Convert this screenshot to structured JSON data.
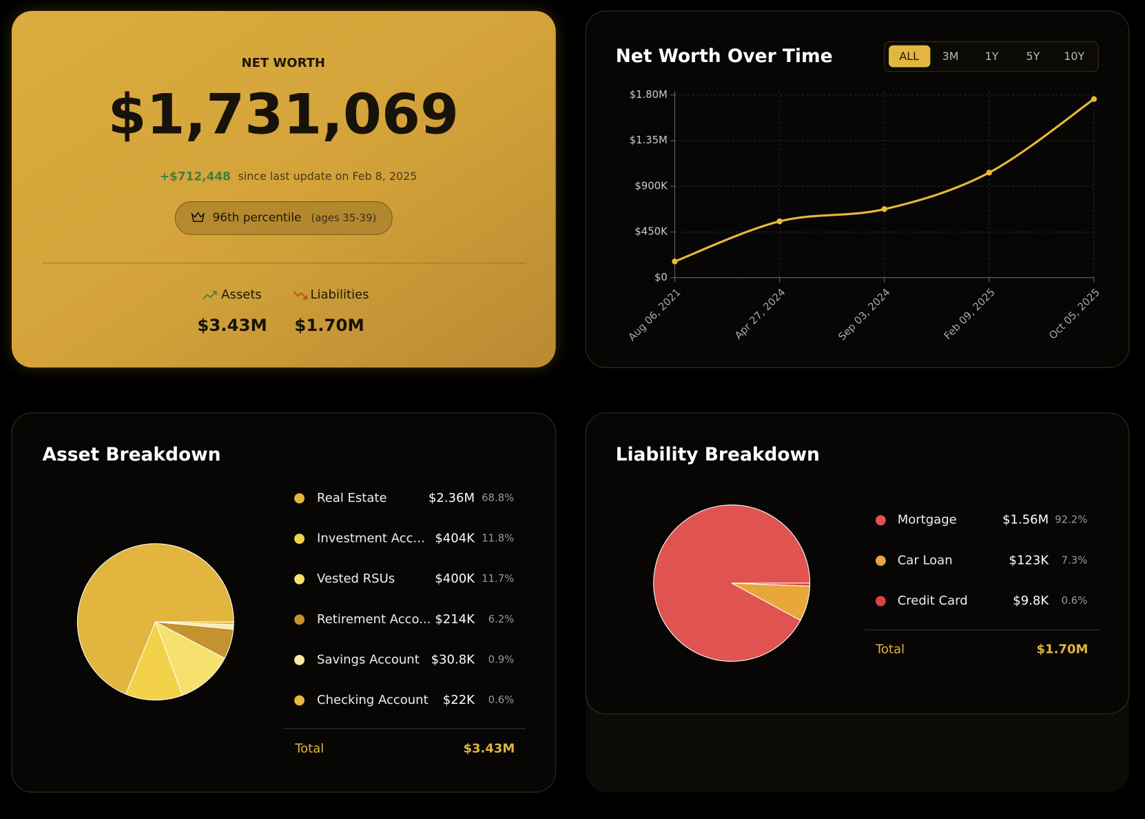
{
  "net_worth": {
    "label": "NET WORTH",
    "value": "$1,731,069",
    "change": "+$712,448",
    "change_note": "since last update on Feb 8, 2025",
    "percentile": "96th percentile",
    "percentile_note": "(ages 35-39)",
    "assets_label": "Assets",
    "assets_value": "$3.43M",
    "liabilities_label": "Liabilities",
    "liabilities_value": "$1.70M"
  },
  "chart_data": [
    {
      "type": "line",
      "title": "Net Worth Over Time",
      "range_options": [
        "ALL",
        "3M",
        "1Y",
        "5Y",
        "10Y"
      ],
      "categories": [
        "Aug 06, 2021",
        "Apr 27, 2024",
        "Sep 03, 2024",
        "Feb 09, 2025",
        "Oct 05, 2025"
      ],
      "series": [
        {
          "name": "Net Worth",
          "color": "#e8b83a",
          "values": [
            160000,
            555000,
            675000,
            1035000,
            1760000
          ]
        }
      ],
      "ylim": [
        0,
        1800000
      ],
      "yticks": [
        {
          "value": 0,
          "label": "$0"
        },
        {
          "value": 450000,
          "label": "$450K"
        },
        {
          "value": 900000,
          "label": "$900K"
        },
        {
          "value": 1350000,
          "label": "$1.35M"
        },
        {
          "value": 1800000,
          "label": "$1.80M"
        }
      ],
      "grid": true
    },
    {
      "type": "pie",
      "title": "Asset Breakdown",
      "categories": [
        "Real Estate",
        "Investment Acc...",
        "Vested RSUs",
        "Retirement Acco...",
        "Savings Account",
        "Checking Account"
      ],
      "values": [
        68.8,
        11.8,
        11.7,
        6.2,
        0.9,
        0.6
      ],
      "value_labels": [
        "68.8%",
        "11.8%",
        "11.7%",
        "6.2%",
        "0.9%",
        "0.6%"
      ],
      "amounts": [
        "$2.36M",
        "$404K",
        "$400K",
        "$214K",
        "$30.8K",
        "$22K"
      ],
      "colors": [
        "#e2b53f",
        "#f3d249",
        "#f6e06e",
        "#c4922f",
        "#f7eba3",
        "#e6b93c"
      ],
      "total_label": "Total",
      "total_value": "$3.43M"
    },
    {
      "type": "pie",
      "title": "Liability Breakdown",
      "categories": [
        "Mortgage",
        "Car Loan",
        "Credit Card"
      ],
      "values": [
        92.2,
        7.3,
        0.6
      ],
      "value_labels": [
        "92.2%",
        "7.3%",
        "0.6%"
      ],
      "amounts": [
        "$1.56M",
        "$123K",
        "$9.8K"
      ],
      "colors": [
        "#df5450",
        "#e8a73b",
        "#d94343"
      ],
      "total_label": "Total",
      "total_value": "$1.70M"
    }
  ]
}
